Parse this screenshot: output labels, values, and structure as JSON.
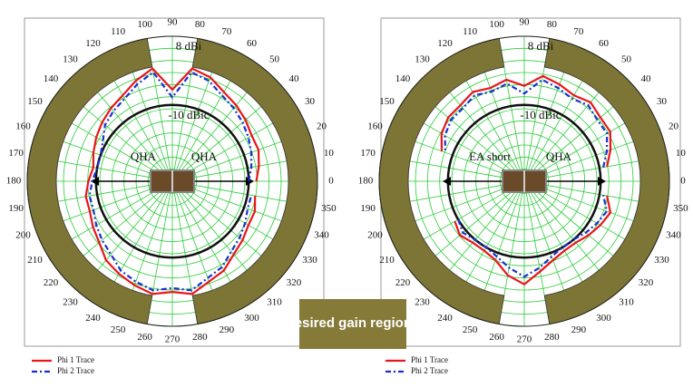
{
  "chart_data": [
    {
      "type": "polar",
      "theta": [
        0,
        10,
        20,
        30,
        40,
        50,
        60,
        70,
        80,
        90,
        100,
        110,
        120,
        130,
        140,
        150,
        160,
        170,
        180,
        190,
        200,
        210,
        220,
        230,
        240,
        250,
        260,
        270,
        280,
        290,
        300,
        310,
        320,
        330,
        340,
        350
      ],
      "rlim": [
        -30,
        8
      ],
      "thetaticks": [
        0,
        10,
        20,
        30,
        40,
        50,
        60,
        70,
        80,
        90,
        100,
        110,
        120,
        130,
        140,
        150,
        160,
        170,
        180,
        190,
        200,
        210,
        220,
        230,
        240,
        250,
        260,
        270,
        280,
        290,
        300,
        310,
        320,
        330,
        340,
        350
      ],
      "reference_levels": [
        {
          "value": 8,
          "label": "8 dBi"
        },
        {
          "value": -10,
          "label": "-10 dBic"
        }
      ],
      "antenna_labels": [
        "QHA",
        "QHA"
      ],
      "grid": true,
      "series": [
        {
          "name": "Phi 1 Trace",
          "color": "#e8161b",
          "values": [
            -8,
            -7,
            -6,
            -6,
            -5,
            -4,
            -3,
            -1,
            0,
            -6,
            0,
            -2,
            -4,
            -5,
            -6,
            -7,
            -8,
            -9,
            -8,
            -7,
            -7,
            -6,
            -5,
            -3,
            -2,
            -1,
            0,
            -1,
            0,
            -2,
            -3,
            -5,
            -6,
            -7,
            -7,
            -8
          ]
        },
        {
          "name": "Phi 2 Trace",
          "color": "#1a2fd0",
          "values": [
            -10,
            -9,
            -8,
            -7,
            -6,
            -5,
            -4,
            -2,
            -1,
            -8,
            -1,
            -3,
            -5,
            -6,
            -7,
            -9,
            -10,
            -10,
            -9,
            -8,
            -8,
            -7,
            -6,
            -5,
            -3,
            -2,
            -1,
            -2,
            -1,
            -3,
            -4,
            -6,
            -7,
            -8,
            -9,
            -9
          ]
        }
      ]
    },
    {
      "type": "polar",
      "theta": [
        0,
        10,
        20,
        30,
        40,
        50,
        60,
        70,
        80,
        90,
        100,
        110,
        120,
        130,
        140,
        150,
        160,
        170,
        180,
        190,
        200,
        210,
        220,
        230,
        240,
        250,
        260,
        270,
        280,
        290,
        300,
        310,
        320,
        330,
        340,
        350
      ],
      "rlim": [
        -30,
        8
      ],
      "thetaticks": [
        0,
        10,
        20,
        30,
        40,
        50,
        60,
        70,
        80,
        90,
        100,
        110,
        120,
        130,
        140,
        150,
        160,
        170,
        180,
        190,
        200,
        210,
        220,
        230,
        240,
        250,
        260,
        270,
        280,
        290,
        300,
        310,
        320,
        330,
        340,
        350
      ],
      "reference_levels": [
        {
          "value": 8,
          "label": "8 dBi"
        },
        {
          "value": -10,
          "label": "-10 dBic"
        }
      ],
      "antenna_labels": [
        "EA short",
        "QHA"
      ],
      "grid": true,
      "series": [
        {
          "name": "Phi 1 Trace",
          "color": "#e8161b",
          "values": [
            null,
            -8,
            -6,
            -4,
            -4,
            -3,
            -4,
            -3,
            -2,
            -5,
            -3,
            -4,
            -3,
            -4,
            -4,
            -5,
            -7,
            null,
            null,
            null,
            null,
            -9,
            -8,
            -9,
            -9,
            -8,
            -5,
            -3,
            -6,
            -8,
            -9,
            -9,
            -8,
            -7,
            -6,
            -8
          ]
        },
        {
          "name": "Phi 2 Trace",
          "color": "#1a2fd0",
          "values": [
            null,
            -9,
            -7,
            -5,
            -5,
            -4,
            -5,
            -4,
            -3,
            -7,
            -4,
            -5,
            -4,
            -5,
            -5,
            -6,
            -8,
            null,
            null,
            null,
            null,
            -10,
            -9,
            -10,
            -10,
            -9,
            -7,
            -5,
            -7,
            -9,
            -10,
            -10,
            -9,
            -8,
            -7,
            -9
          ]
        }
      ]
    }
  ],
  "annotation": "desired gain regions"
}
